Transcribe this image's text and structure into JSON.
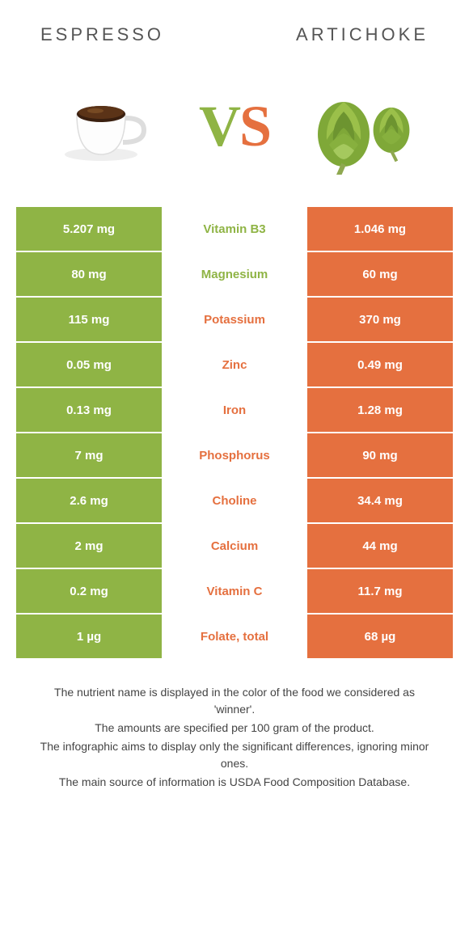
{
  "header": {
    "left": "Espresso",
    "right": "Artichoke"
  },
  "vs": {
    "v": "V",
    "s": "S"
  },
  "colors": {
    "green": "#8fb445",
    "orange": "#e5703f",
    "mid_green_text": "#8fb445",
    "mid_orange_text": "#e5703f"
  },
  "rows": [
    {
      "nutrient": "Vitamin B3",
      "left": "5.207 mg",
      "right": "1.046 mg",
      "winner": "left"
    },
    {
      "nutrient": "Magnesium",
      "left": "80 mg",
      "right": "60 mg",
      "winner": "left"
    },
    {
      "nutrient": "Potassium",
      "left": "115 mg",
      "right": "370 mg",
      "winner": "right"
    },
    {
      "nutrient": "Zinc",
      "left": "0.05 mg",
      "right": "0.49 mg",
      "winner": "right"
    },
    {
      "nutrient": "Iron",
      "left": "0.13 mg",
      "right": "1.28 mg",
      "winner": "right"
    },
    {
      "nutrient": "Phosphorus",
      "left": "7 mg",
      "right": "90 mg",
      "winner": "right"
    },
    {
      "nutrient": "Choline",
      "left": "2.6 mg",
      "right": "34.4 mg",
      "winner": "right"
    },
    {
      "nutrient": "Calcium",
      "left": "2 mg",
      "right": "44 mg",
      "winner": "right"
    },
    {
      "nutrient": "Vitamin C",
      "left": "0.2 mg",
      "right": "11.7 mg",
      "winner": "right"
    },
    {
      "nutrient": "Folate, total",
      "left": "1 µg",
      "right": "68 µg",
      "winner": "right"
    }
  ],
  "footnotes": [
    "The nutrient name is displayed in the color of the food we considered as 'winner'.",
    "The amounts are specified per 100 gram of the product.",
    "The infographic aims to display only the significant differences, ignoring minor ones.",
    "The main source of information is USDA Food Composition Database."
  ]
}
